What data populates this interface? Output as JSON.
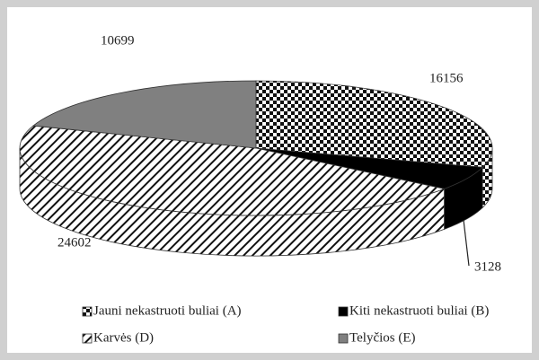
{
  "chart_data": {
    "type": "pie3d",
    "categories": [
      "Jauni nekastruoti buliai (A)",
      "Kiti nekastruoti buliai (B)",
      "Karvės (D)",
      "Telyčios (E)"
    ],
    "values": [
      16156,
      3128,
      24602,
      10699
    ],
    "fills": [
      "checkered",
      "#000000",
      "diagonal-hatch",
      "#808080"
    ]
  }
}
